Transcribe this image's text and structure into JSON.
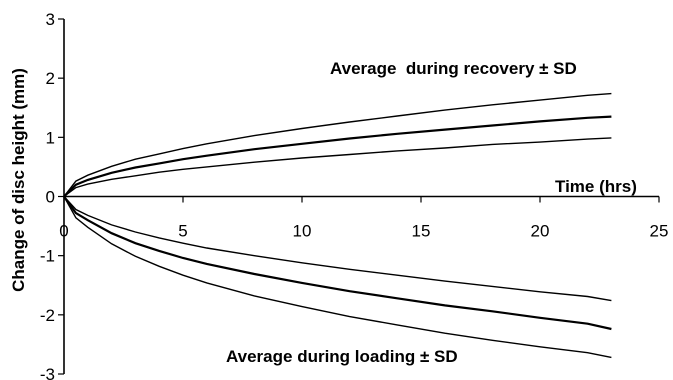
{
  "chart_data": {
    "type": "line",
    "xlabel": "Time (hrs)",
    "ylabel": "Change of disc height (mm)",
    "xlim": [
      0,
      25
    ],
    "ylim": [
      -3,
      3
    ],
    "xticks": [
      "0",
      "5",
      "10",
      "15",
      "20",
      "25"
    ],
    "yticks": [
      "3",
      "2",
      "1",
      "0",
      "-1",
      "-2",
      "-3"
    ],
    "grid": false,
    "annotations": {
      "recovery": "Average  during recovery ± SD",
      "loading": "Average during loading ± SD"
    },
    "x": [
      0,
      0.5,
      1,
      2,
      3,
      4,
      5,
      6,
      8,
      10,
      12,
      14,
      16,
      18,
      20,
      22,
      23
    ],
    "series": [
      {
        "group": "recovery",
        "role": "plus_sd",
        "values": [
          0,
          0.26,
          0.36,
          0.51,
          0.63,
          0.72,
          0.81,
          0.89,
          1.03,
          1.15,
          1.26,
          1.36,
          1.46,
          1.55,
          1.63,
          1.71,
          1.74
        ]
      },
      {
        "group": "recovery",
        "role": "average",
        "values": [
          0,
          0.2,
          0.28,
          0.4,
          0.49,
          0.56,
          0.63,
          0.69,
          0.8,
          0.89,
          0.98,
          1.06,
          1.13,
          1.2,
          1.27,
          1.33,
          1.35
        ]
      },
      {
        "group": "recovery",
        "role": "minus_sd",
        "values": [
          0,
          0.15,
          0.21,
          0.29,
          0.35,
          0.41,
          0.46,
          0.5,
          0.58,
          0.65,
          0.71,
          0.77,
          0.82,
          0.88,
          0.92,
          0.97,
          0.99
        ]
      },
      {
        "group": "loading",
        "role": "minus_sd",
        "values": [
          0,
          -0.36,
          -0.52,
          -0.8,
          -1.01,
          -1.18,
          -1.33,
          -1.46,
          -1.68,
          -1.86,
          -2.03,
          -2.17,
          -2.31,
          -2.43,
          -2.54,
          -2.64,
          -2.72
        ]
      },
      {
        "group": "loading",
        "role": "average",
        "values": [
          0,
          -0.28,
          -0.4,
          -0.62,
          -0.79,
          -0.92,
          -1.04,
          -1.14,
          -1.31,
          -1.46,
          -1.6,
          -1.72,
          -1.84,
          -1.94,
          -2.05,
          -2.15,
          -2.24
        ]
      },
      {
        "group": "loading",
        "role": "plus_sd",
        "values": [
          0,
          -0.22,
          -0.32,
          -0.48,
          -0.6,
          -0.7,
          -0.79,
          -0.87,
          -1.0,
          -1.12,
          -1.23,
          -1.33,
          -1.43,
          -1.52,
          -1.61,
          -1.69,
          -1.76
        ]
      }
    ]
  }
}
